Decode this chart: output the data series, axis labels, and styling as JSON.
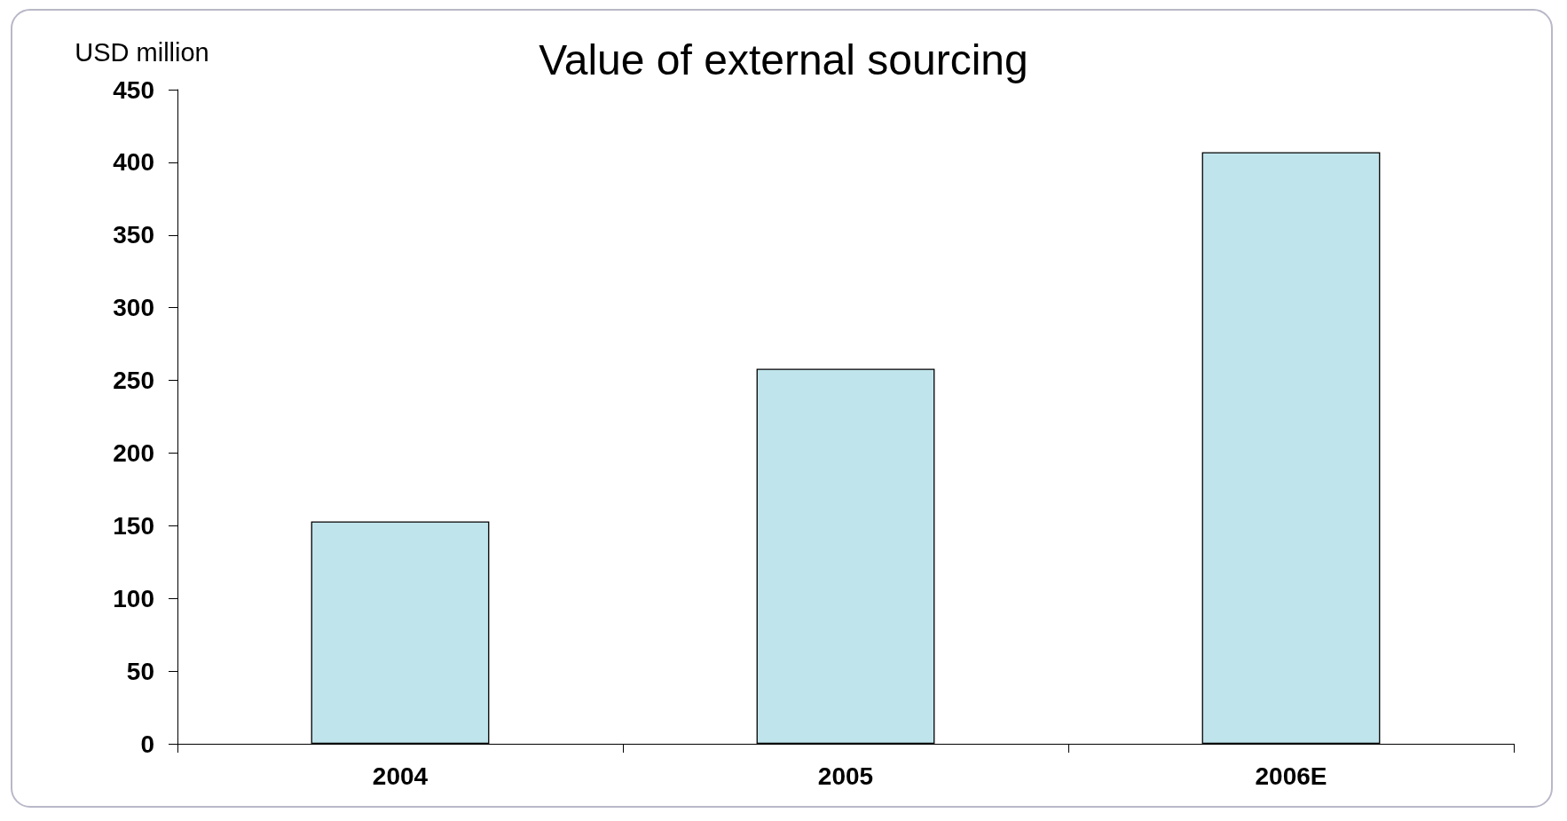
{
  "chart_data": {
    "type": "bar",
    "title": "Value of external sourcing",
    "ylabel": "USD million",
    "categories": [
      "2004",
      "2005",
      "2006E"
    ],
    "values": [
      153,
      258,
      407
    ],
    "color": "#c0e4ec",
    "ylim": [
      0,
      450
    ],
    "yticks": [
      0,
      50,
      100,
      150,
      200,
      250,
      300,
      350,
      400,
      450
    ],
    "grid": false
  }
}
